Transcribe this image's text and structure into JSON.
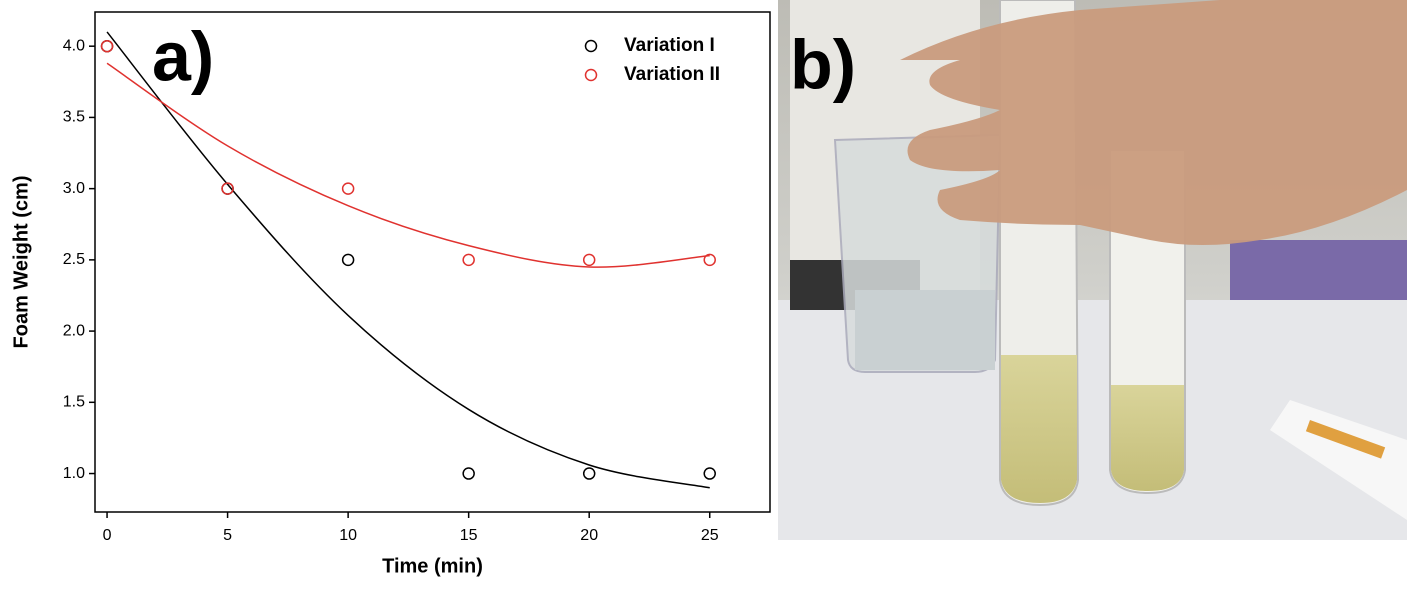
{
  "chart_data": {
    "type": "scatter",
    "annotation": "a)",
    "xlabel": "Time (min)",
    "ylabel": "Foam Weight (cm)",
    "x": [
      0,
      5,
      10,
      15,
      20,
      25
    ],
    "series": [
      {
        "name": "Variation I",
        "color": "#000000",
        "values": [
          4.0,
          3.0,
          2.5,
          1.0,
          1.0,
          1.0
        ],
        "fit": [
          4.1,
          3.03,
          2.11,
          1.45,
          1.06,
          0.9
        ]
      },
      {
        "name": "Variation II",
        "color": "#e0322f",
        "values": [
          4.0,
          3.0,
          3.0,
          2.5,
          2.5,
          2.5
        ],
        "fit": [
          3.88,
          3.3,
          2.88,
          2.6,
          2.45,
          2.53
        ]
      }
    ],
    "xlim": [
      -0.5,
      27.5
    ],
    "ylim": [
      0.73,
      4.24
    ],
    "xticks": [
      0,
      5,
      10,
      15,
      20,
      25
    ],
    "yticks": [
      {
        "value": 1,
        "label": "1.0"
      },
      {
        "value": 1.5,
        "label": "1.5"
      },
      {
        "value": 2,
        "label": "2.0"
      },
      {
        "value": 2.5,
        "label": "2.5"
      },
      {
        "value": 3,
        "label": "3.0"
      },
      {
        "value": 3.5,
        "label": "3.5"
      },
      {
        "value": 4,
        "label": "4.0"
      }
    ],
    "legend": "upper right"
  },
  "photo_label": "b)"
}
